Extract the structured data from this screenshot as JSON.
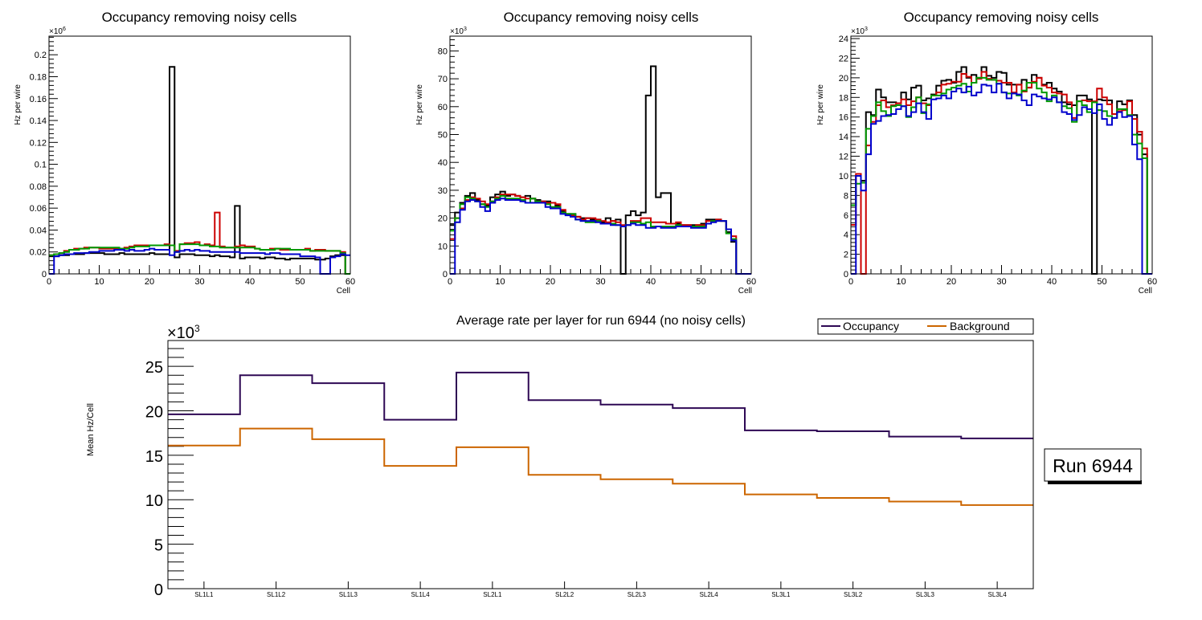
{
  "chart_data": [
    {
      "type": "line",
      "title": "Occupancy removing noisy cells",
      "xlabel": "Cell",
      "ylabel": "Hz per wire",
      "y_exponent": "×10^6",
      "xlim": [
        0,
        60
      ],
      "ylim": [
        0,
        0.217
      ],
      "x_ticks": [
        "0",
        "10",
        "20",
        "30",
        "40",
        "50",
        "60"
      ],
      "y_ticks": [
        "0",
        "0.02",
        "0.04",
        "0.06",
        "0.08",
        "0.1",
        "0.12",
        "0.14",
        "0.16",
        "0.18",
        "0.2"
      ],
      "y_tick_values": [
        0,
        0.02,
        0.04,
        0.06,
        0.08,
        0.1,
        0.12,
        0.14,
        0.16,
        0.18,
        0.2
      ],
      "histogram": true,
      "series": [
        {
          "name": "black",
          "color": "#000000",
          "values": [
            0.016,
            0.016,
            0.017,
            0.017,
            0.018,
            0.018,
            0.018,
            0.019,
            0.019,
            0.019,
            0.019,
            0.018,
            0.018,
            0.018,
            0.019,
            0.018,
            0.018,
            0.018,
            0.018,
            0.018,
            0.019,
            0.018,
            0.018,
            0.018,
            0.189,
            0.015,
            0.018,
            0.018,
            0.018,
            0.017,
            0.017,
            0.017,
            0.016,
            0.017,
            0.016,
            0.016,
            0.015,
            0.062,
            0.014,
            0.015,
            0.015,
            0.015,
            0.014,
            0.015,
            0.015,
            0.014,
            0.014,
            0.013,
            0.014,
            0.014,
            0.014,
            0.014,
            0.014,
            0.013,
            0.013,
            0.014,
            0.016,
            0.017,
            0.017,
            0.0
          ]
        },
        {
          "name": "red",
          "color": "#cc0000",
          "values": [
            0.017,
            0.018,
            0.019,
            0.021,
            0.022,
            0.023,
            0.023,
            0.024,
            0.024,
            0.024,
            0.023,
            0.023,
            0.023,
            0.023,
            0.023,
            0.024,
            0.025,
            0.026,
            0.026,
            0.026,
            0.026,
            0.026,
            0.026,
            0.027,
            0.026,
            0.021,
            0.027,
            0.028,
            0.028,
            0.029,
            0.026,
            0.027,
            0.026,
            0.056,
            0.025,
            0.024,
            0.024,
            0.025,
            0.026,
            0.025,
            0.025,
            0.023,
            0.022,
            0.022,
            0.023,
            0.023,
            0.022,
            0.022,
            0.022,
            0.022,
            0.022,
            0.023,
            0.021,
            0.022,
            0.022,
            0.021,
            0.021,
            0.021,
            0.02,
            0.0
          ]
        },
        {
          "name": "green",
          "color": "#009900",
          "values": [
            0.017,
            0.018,
            0.019,
            0.02,
            0.022,
            0.022,
            0.023,
            0.023,
            0.024,
            0.024,
            0.024,
            0.024,
            0.024,
            0.024,
            0.023,
            0.023,
            0.024,
            0.025,
            0.025,
            0.025,
            0.026,
            0.026,
            0.026,
            0.026,
            0.026,
            0.02,
            0.027,
            0.027,
            0.027,
            0.027,
            0.026,
            0.026,
            0.025,
            0.025,
            0.024,
            0.024,
            0.024,
            0.024,
            0.024,
            0.024,
            0.024,
            0.023,
            0.022,
            0.022,
            0.022,
            0.023,
            0.023,
            0.023,
            0.022,
            0.022,
            0.022,
            0.022,
            0.021,
            0.021,
            0.021,
            0.021,
            0.021,
            0.021,
            0.019,
            0.0
          ]
        },
        {
          "name": "blue",
          "color": "#0000cc",
          "values": [
            0.0,
            0.016,
            0.017,
            0.018,
            0.018,
            0.019,
            0.019,
            0.019,
            0.02,
            0.02,
            0.021,
            0.021,
            0.021,
            0.022,
            0.022,
            0.021,
            0.022,
            0.021,
            0.021,
            0.022,
            0.023,
            0.022,
            0.022,
            0.022,
            0.017,
            0.02,
            0.021,
            0.022,
            0.021,
            0.022,
            0.021,
            0.021,
            0.02,
            0.02,
            0.02,
            0.02,
            0.02,
            0.02,
            0.019,
            0.019,
            0.019,
            0.019,
            0.019,
            0.018,
            0.019,
            0.019,
            0.018,
            0.018,
            0.018,
            0.018,
            0.016,
            0.016,
            0.016,
            0.015,
            0.0,
            0.0,
            0.015,
            0.016,
            0.018,
            0.017
          ]
        }
      ]
    },
    {
      "type": "line",
      "title": "Occupancy removing noisy cells",
      "xlabel": "Cell",
      "ylabel": "Hz per wire",
      "y_exponent": "×10^3",
      "xlim": [
        0,
        60
      ],
      "ylim": [
        0,
        85.3
      ],
      "x_ticks": [
        "0",
        "10",
        "20",
        "30",
        "40",
        "50",
        "60"
      ],
      "y_ticks": [
        "0",
        "10",
        "20",
        "30",
        "40",
        "50",
        "60",
        "70",
        "80"
      ],
      "y_tick_values": [
        0,
        10,
        20,
        30,
        40,
        50,
        60,
        70,
        80
      ],
      "histogram": true,
      "series": [
        {
          "name": "black",
          "color": "#000000",
          "values": [
            17.5,
            22,
            25.5,
            28,
            29,
            26.5,
            25,
            24.5,
            27.5,
            28.5,
            29.5,
            28,
            28.5,
            28,
            27.5,
            28,
            27,
            26.5,
            26,
            26,
            25.5,
            24.5,
            22.5,
            21.5,
            21.5,
            20.5,
            20,
            20,
            19.5,
            19.5,
            18.5,
            20,
            19,
            19.5,
            0,
            21,
            22.5,
            21,
            22,
            64,
            74.5,
            27.5,
            29,
            29,
            18,
            18,
            17.5,
            17.5,
            17.5,
            17.5,
            18,
            19.5,
            19.5,
            19.5,
            19,
            15,
            11.5,
            0,
            0,
            0
          ]
        },
        {
          "name": "red",
          "color": "#cc0000",
          "values": [
            12.5,
            20,
            23.5,
            26.5,
            27.5,
            27,
            26,
            25,
            26,
            27.5,
            28.5,
            28.5,
            28.5,
            28,
            27.5,
            27,
            27,
            26,
            26,
            25.5,
            25.5,
            25,
            23,
            21.5,
            21,
            20.5,
            19.5,
            20,
            20,
            19.5,
            19,
            18.5,
            19,
            18.5,
            17.5,
            17.5,
            19,
            19,
            20,
            20,
            18.5,
            18.5,
            18.5,
            18,
            18,
            18.5,
            17.5,
            17.5,
            17,
            17.5,
            17.5,
            19,
            19,
            19.5,
            19,
            16,
            13.5,
            0,
            0,
            0
          ]
        },
        {
          "name": "green",
          "color": "#009900",
          "values": [
            15.5,
            20,
            25,
            27.5,
            27,
            26,
            25,
            24,
            26,
            27,
            28,
            27,
            27,
            27,
            26.5,
            25.5,
            27,
            26,
            25.5,
            25,
            24,
            24,
            22,
            21.5,
            21.5,
            19.5,
            19,
            18.5,
            18.5,
            19,
            18,
            18,
            18,
            17.5,
            17,
            17.5,
            18.5,
            18.5,
            18,
            18.5,
            17,
            17,
            17,
            17,
            17,
            17.5,
            17,
            17,
            17,
            17,
            17,
            18,
            19,
            19,
            19,
            14.5,
            12.5,
            0,
            0,
            0
          ]
        },
        {
          "name": "blue",
          "color": "#0000cc",
          "values": [
            0,
            18.5,
            23,
            26,
            26.5,
            26,
            24,
            22.5,
            25.5,
            26.5,
            27,
            26.5,
            26.5,
            26.5,
            26,
            25.5,
            25.5,
            25.5,
            25.5,
            24,
            23.5,
            23.5,
            21.5,
            21,
            20.5,
            19.5,
            19,
            19,
            19,
            18.5,
            18,
            18,
            17.5,
            17.5,
            17,
            17.5,
            18,
            17.5,
            17.5,
            16.5,
            16.5,
            17,
            16.5,
            16.5,
            16.5,
            17,
            17,
            17,
            16.5,
            16.5,
            16.5,
            18,
            18.5,
            19,
            19,
            16,
            12,
            0,
            0,
            0
          ]
        }
      ]
    },
    {
      "type": "line",
      "title": "Occupancy removing noisy cells",
      "xlabel": "Cell",
      "ylabel": "Hz per wire",
      "y_exponent": "×10^3",
      "xlim": [
        0,
        60
      ],
      "ylim": [
        0,
        24.25
      ],
      "x_ticks": [
        "0",
        "10",
        "20",
        "30",
        "40",
        "50",
        "60"
      ],
      "y_ticks": [
        "0",
        "2",
        "4",
        "6",
        "8",
        "10",
        "12",
        "14",
        "16",
        "18",
        "20",
        "22",
        "24"
      ],
      "y_tick_values": [
        0,
        2,
        4,
        6,
        8,
        10,
        12,
        14,
        16,
        18,
        20,
        22,
        24
      ],
      "histogram": true,
      "series": [
        {
          "name": "black",
          "color": "#000000",
          "values": [
            7,
            10,
            9.5,
            16.5,
            16.2,
            18.8,
            18,
            17.5,
            17.5,
            17.4,
            18.5,
            17.8,
            19,
            19.2,
            17.7,
            17.9,
            18.3,
            19.2,
            19.7,
            19.8,
            19.5,
            20.6,
            21.1,
            20,
            20.3,
            20,
            21.1,
            20.2,
            20,
            20.6,
            20.5,
            19.3,
            19.3,
            19.3,
            19.8,
            19,
            20.3,
            20,
            19.3,
            19.5,
            18.9,
            18.6,
            17.5,
            17.3,
            17.2,
            18.2,
            18.2,
            17.8,
            0,
            17.8,
            17.7,
            17.7,
            16.3,
            17.6,
            17.3,
            17.7,
            16.2,
            14.2,
            12.2,
            0
          ]
        },
        {
          "name": "red",
          "color": "#cc0000",
          "values": [
            5,
            10.2,
            0,
            13.1,
            15.5,
            17.2,
            17.7,
            17,
            17.2,
            17.4,
            17.8,
            17.2,
            17.6,
            18,
            17.4,
            17.2,
            18.2,
            18.5,
            19.3,
            19.4,
            19.6,
            19.6,
            20.4,
            20.1,
            19.5,
            19.9,
            20.6,
            19.9,
            19.8,
            19.7,
            19.5,
            19.5,
            18.5,
            19.3,
            18.6,
            19,
            19.6,
            20,
            19.2,
            19,
            18.5,
            18.4,
            18.3,
            17.5,
            15.9,
            17.6,
            17.7,
            17.6,
            17.6,
            18.9,
            18,
            17.3,
            16.3,
            16.6,
            16.7,
            17.6,
            15.8,
            14.5,
            12.8,
            0
          ]
        },
        {
          "name": "green",
          "color": "#009900",
          "values": [
            7,
            9.2,
            9.3,
            14.8,
            16.1,
            17.5,
            16.6,
            16.1,
            17.1,
            17.2,
            17.1,
            16,
            17,
            18,
            16.4,
            17.3,
            18.2,
            18.2,
            18.4,
            18.8,
            19,
            19.2,
            19.4,
            18.6,
            19.5,
            20,
            20,
            19.8,
            19.8,
            19.4,
            18.5,
            18.4,
            18.4,
            18.2,
            18.7,
            19.5,
            19.5,
            18.9,
            18.5,
            17.6,
            18.2,
            17.5,
            17.1,
            16.9,
            15.5,
            17.6,
            17.2,
            16.5,
            17.5,
            16.7,
            16.6,
            16.1,
            15.9,
            16.8,
            16.8,
            16.2,
            14.2,
            13.3,
            11.8,
            0
          ]
        },
        {
          "name": "blue",
          "color": "#0000cc",
          "values": [
            0,
            10,
            8.5,
            12.2,
            15.3,
            15.6,
            16.1,
            16.2,
            16.3,
            16.8,
            17.1,
            16.1,
            16.5,
            17.4,
            16.5,
            15.8,
            17.8,
            17.9,
            18.2,
            17.9,
            18.6,
            18.9,
            18.5,
            19.1,
            18.2,
            18.5,
            19.3,
            19.2,
            18.5,
            19.4,
            18.5,
            17.9,
            18.4,
            18.3,
            17.7,
            17.2,
            18.3,
            18.1,
            17.9,
            17.8,
            18,
            17.5,
            16.5,
            16.3,
            15.7,
            16.2,
            17,
            16.8,
            16.4,
            17.3,
            15.8,
            15.2,
            15.9,
            16.5,
            16,
            16.1,
            13.2,
            11.7,
            0,
            0
          ]
        }
      ]
    },
    {
      "type": "line",
      "title": "Average rate per layer for run 6944 (no noisy cells)",
      "xlabel": "",
      "ylabel": "Mean Hz/Cell",
      "y_exponent": "×10^3",
      "ylim": [
        0,
        27.9
      ],
      "histogram": true,
      "categories": [
        "SL1L1",
        "SL1L2",
        "SL1L3",
        "SL1L4",
        "SL2L1",
        "SL2L2",
        "SL2L3",
        "SL2L4",
        "SL3L1",
        "SL3L2",
        "SL3L3",
        "SL3L4"
      ],
      "y_ticks": [
        "0",
        "5",
        "10",
        "15",
        "20",
        "25"
      ],
      "y_tick_values": [
        0,
        5,
        10,
        15,
        20,
        25
      ],
      "legend_position": "top-right",
      "series": [
        {
          "name": "Occupancy",
          "color": "#2e0854",
          "values": [
            19.6,
            24.0,
            23.1,
            19.0,
            24.3,
            21.2,
            20.7,
            20.3,
            17.8,
            17.7,
            17.1,
            16.9
          ]
        },
        {
          "name": "Background",
          "color": "#cc6600",
          "values": [
            16.1,
            18.0,
            16.8,
            13.8,
            15.9,
            12.8,
            12.3,
            11.8,
            10.6,
            10.2,
            9.8,
            9.4
          ]
        }
      ],
      "annotation": "Run 6944"
    }
  ]
}
